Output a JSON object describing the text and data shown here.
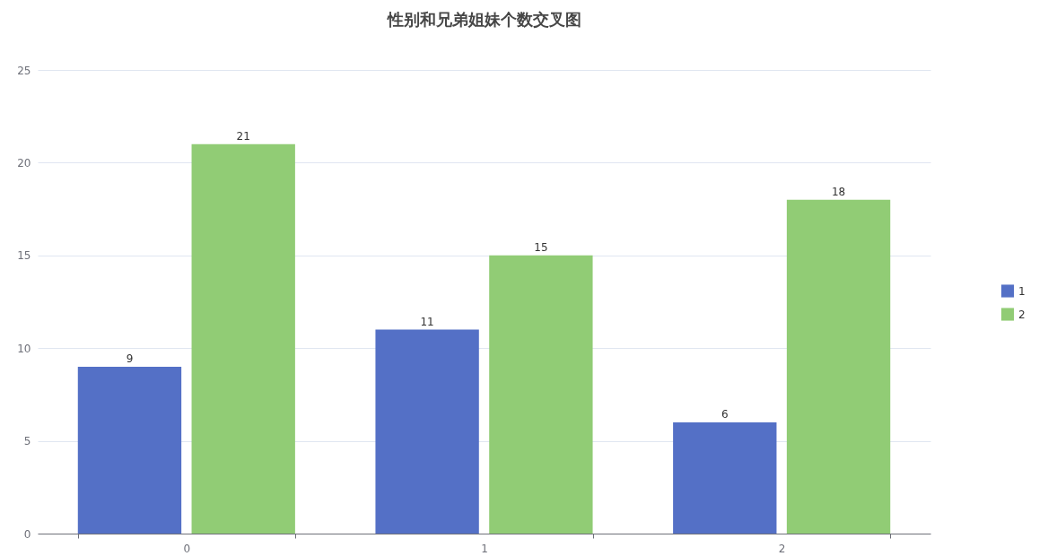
{
  "chart_data": {
    "type": "bar",
    "title": "性别和兄弟姐妹个数交叉图",
    "categories": [
      "0",
      "1",
      "2"
    ],
    "series": [
      {
        "name": "1",
        "color": "#5470c6",
        "values": [
          9,
          11,
          6
        ]
      },
      {
        "name": "2",
        "color": "#91cc75",
        "values": [
          21,
          15,
          18
        ]
      }
    ],
    "ylim": [
      0,
      25
    ],
    "yticks": [
      0,
      5,
      10,
      15,
      20,
      25
    ],
    "grid": "y",
    "legend": "right",
    "data_labels": true
  }
}
